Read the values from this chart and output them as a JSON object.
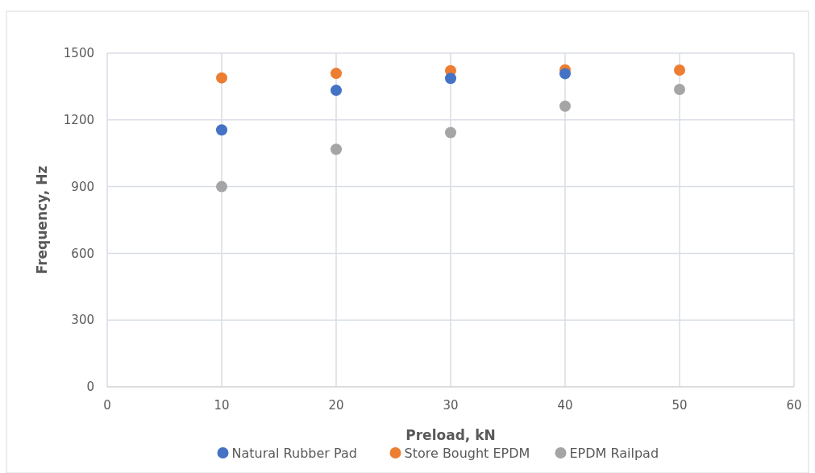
{
  "chart_data": {
    "type": "scatter",
    "xlabel": "Preload, kN",
    "ylabel": "Frequency, Hz",
    "x": [
      10,
      20,
      30,
      40,
      50
    ],
    "xlim": [
      0,
      60
    ],
    "xticks": [
      0,
      10,
      20,
      30,
      40,
      50,
      60
    ],
    "ylim": [
      0,
      1500
    ],
    "yticks": [
      0,
      300,
      600,
      900,
      1200,
      1500
    ],
    "grid": true,
    "legend": "bottom",
    "marker": "circle",
    "series": [
      {
        "name": "Natural Rubber Pad",
        "color": "#4472c4",
        "values": [
          1155,
          1333,
          1387,
          1408,
          null
        ]
      },
      {
        "name": "Store Bought EPDM",
        "color": "#ed7d31",
        "values": [
          1389,
          1409,
          1421,
          1425,
          1424
        ]
      },
      {
        "name": "EPDM Railpad",
        "color": "#a5a5a5",
        "values": [
          900,
          1068,
          1143,
          1262,
          1337
        ]
      }
    ]
  }
}
